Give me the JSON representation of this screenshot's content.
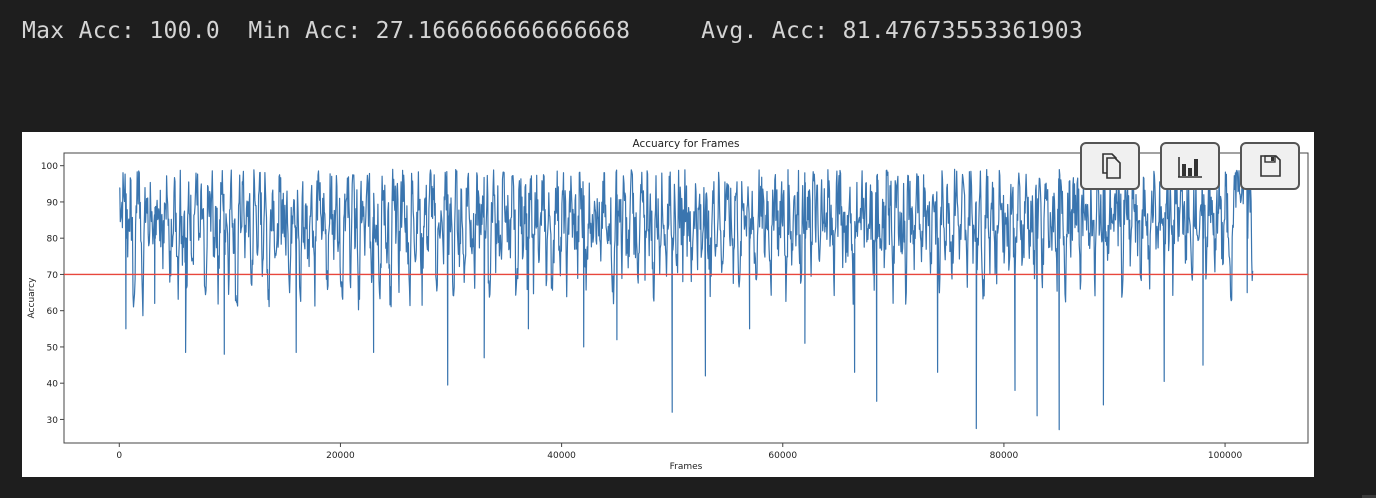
{
  "stats": {
    "max": "Max Acc: 100.0",
    "min": "Min Acc: 27.166666666666668",
    "avg": "Avg. Acc: 81.47673553361903"
  },
  "toolbar": {
    "copy_icon": "copy-icon",
    "chart_icon": "bar-chart-icon",
    "save_icon": "save-icon"
  },
  "chart_data": {
    "type": "line",
    "title": "Accuarcy for Frames",
    "xlabel": "Frames",
    "ylabel": "Accuarcy",
    "xlim": [
      -5000,
      107500
    ],
    "ylim": [
      23.5,
      103.5
    ],
    "xticks": [
      0,
      20000,
      40000,
      60000,
      80000,
      100000
    ],
    "yticks": [
      30,
      40,
      50,
      60,
      70,
      80,
      90,
      100
    ],
    "grid": false,
    "series": [
      {
        "color": "#3a75af",
        "x_range": [
          0,
          102500
        ],
        "values": [
          94,
          89,
          92,
          96,
          81,
          90,
          85,
          55,
          92,
          97,
          88,
          60,
          84,
          91,
          79,
          95,
          70,
          86,
          93,
          82,
          88,
          76,
          90,
          98,
          65,
          84,
          92,
          87,
          71,
          95,
          80,
          89,
          62,
          93,
          85,
          78,
          91,
          96,
          74,
          88,
          83,
          49,
          90,
          86,
          94,
          77,
          92,
          68,
          85,
          97,
          81,
          89,
          73,
          94,
          86,
          79,
          48,
          92,
          88,
          95,
          76,
          90,
          84,
          66,
          93,
          87,
          80,
          97,
          74,
          91,
          85,
          59,
          88,
          94,
          82,
          71,
          96,
          87,
          90,
          78,
          93,
          64,
          86,
          97,
          83,
          89,
          55,
          92,
          80,
          88,
          75,
          95,
          86,
          70,
          91,
          97,
          79,
          88,
          84,
          68,
          93,
          89,
          76,
          98,
          85,
          81,
          62,
          94,
          87,
          90,
          73,
          96,
          82,
          88,
          57,
          91,
          85,
          77,
          94,
          89,
          70,
          97,
          83,
          86,
          66,
          93,
          90,
          79,
          87,
          48,
          95,
          84,
          91,
          73,
          88,
          97,
          81,
          86,
          60,
          93,
          89,
          76,
          95,
          84,
          69,
          90,
          87,
          78,
          97,
          83,
          92,
          64,
          88,
          85,
          74,
          96,
          91,
          80,
          87,
          58,
          94,
          86,
          79,
          92,
          67,
          89,
          98,
          82,
          85,
          72,
          93,
          88,
          77,
          96,
          84,
          90,
          63,
          87,
          93,
          79,
          91,
          70,
          86,
          97,
          82,
          89,
          75,
          94,
          85,
          61,
          92,
          88,
          80,
          97,
          74,
          87,
          91,
          66,
          93,
          86,
          78,
          89,
          95,
          72,
          84,
          90,
          60,
          88,
          96,
          83,
          77,
          91,
          86,
          68,
          94,
          89,
          81,
          87,
          73,
          96,
          85,
          92,
          64,
          88,
          90,
          78,
          97,
          84,
          86,
          70,
          93,
          89,
          75,
          91,
          82,
          59,
          95,
          87,
          90,
          76,
          93,
          84,
          71,
          88,
          97,
          80,
          86,
          67,
          92,
          89,
          74,
          95,
          83,
          88,
          62,
          91,
          86,
          79,
          94,
          85,
          72,
          90,
          97,
          81,
          87,
          65,
          93,
          88,
          77,
          96,
          84,
          90,
          69,
          86,
          92,
          80,
          89,
          73,
          95,
          87,
          83,
          66,
          91,
          88,
          78,
          94,
          85,
          70,
          90,
          96,
          82,
          86,
          75,
          93,
          89,
          61,
          87,
          91,
          84,
          97,
          74,
          88,
          80,
          68,
          94,
          86,
          90,
          77,
          92,
          83,
          71,
          89,
          96,
          85,
          79,
          93,
          87,
          64,
          90,
          88,
          76,
          95,
          84,
          91,
          72,
          86,
          93,
          81,
          89,
          75,
          97,
          85,
          88,
          69,
          92,
          90,
          78,
          94,
          86,
          83,
          71,
          91,
          87,
          96,
          80,
          88,
          74,
          93,
          85,
          62,
          90,
          89,
          79,
          95,
          84,
          92,
          73,
          87,
          86,
          68,
          94,
          90,
          81,
          88,
          76,
          96,
          83,
          91,
          70,
          87,
          93,
          85,
          79,
          90,
          65,
          95,
          88,
          84,
          77,
          92,
          89,
          72,
          86,
          97,
          82,
          90,
          75,
          94,
          87,
          83,
          67,
          91,
          88,
          80,
          95,
          85,
          73,
          89,
          96,
          84,
          78,
          92,
          87,
          70,
          90,
          93,
          82,
          88,
          76,
          95,
          86,
          64,
          91,
          89,
          79,
          94,
          84,
          72,
          87,
          96,
          85,
          81,
          90,
          75,
          93,
          88,
          68,
          86,
          92,
          83,
          77,
          95,
          89,
          80,
          87,
          71,
          94,
          85,
          91,
          66,
          89,
          93,
          82,
          78,
          90,
          86,
          74,
          96,
          88,
          84,
          69,
          92,
          87,
          80,
          95,
          83,
          90,
          73,
          88,
          94,
          85,
          77,
          91,
          86,
          67,
          93,
          89,
          81,
          96,
          84,
          72,
          90,
          88,
          79,
          94,
          85,
          92,
          65,
          87,
          90,
          83,
          76,
          95,
          89,
          80,
          86,
          71,
          93,
          88,
          85,
          68,
          91,
          94,
          82,
          78,
          90,
          87,
          74,
          96,
          84,
          89,
          70,
          92,
          86,
          81,
          95,
          88,
          76,
          90,
          84,
          66,
          93,
          89,
          83,
          79,
          91,
          87,
          73,
          96,
          85,
          90,
          69,
          88,
          94,
          82,
          77,
          92,
          86,
          80,
          65,
          98,
          96,
          94,
          92,
          89,
          97,
          99,
          90,
          93,
          71
        ]
      }
    ],
    "reference_line": {
      "y": 70,
      "color": "#e8473d"
    },
    "lows": [
      {
        "x": 600,
        "y": 55
      },
      {
        "x": 3200,
        "y": 62
      },
      {
        "x": 6000,
        "y": 48.5
      },
      {
        "x": 9500,
        "y": 48
      },
      {
        "x": 16000,
        "y": 48.5
      },
      {
        "x": 23000,
        "y": 48.5
      },
      {
        "x": 29700,
        "y": 39.5
      },
      {
        "x": 33000,
        "y": 47
      },
      {
        "x": 37000,
        "y": 55
      },
      {
        "x": 42000,
        "y": 50
      },
      {
        "x": 45000,
        "y": 52
      },
      {
        "x": 50000,
        "y": 32
      },
      {
        "x": 53000,
        "y": 42
      },
      {
        "x": 57000,
        "y": 55
      },
      {
        "x": 62000,
        "y": 51
      },
      {
        "x": 66500,
        "y": 43
      },
      {
        "x": 68500,
        "y": 35
      },
      {
        "x": 74000,
        "y": 43
      },
      {
        "x": 77500,
        "y": 27.5
      },
      {
        "x": 81000,
        "y": 38
      },
      {
        "x": 83000,
        "y": 31
      },
      {
        "x": 85000,
        "y": 27.2
      },
      {
        "x": 89000,
        "y": 34
      },
      {
        "x": 94500,
        "y": 40.5
      },
      {
        "x": 98000,
        "y": 45
      },
      {
        "x": 102000,
        "y": 65
      }
    ]
  }
}
